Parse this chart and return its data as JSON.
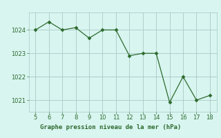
{
  "x": [
    5,
    6,
    7,
    8,
    9,
    10,
    11,
    12,
    13,
    14,
    15,
    16,
    17,
    18
  ],
  "y": [
    1024.0,
    1024.35,
    1024.0,
    1024.1,
    1023.65,
    1024.0,
    1024.0,
    1022.9,
    1023.0,
    1023.0,
    1020.9,
    1022.0,
    1021.0,
    1021.2
  ],
  "line_color": "#2d6a2d",
  "marker": "D",
  "marker_size": 2.5,
  "line_width": 0.9,
  "xlim": [
    4.5,
    18.5
  ],
  "ylim": [
    1020.5,
    1024.75
  ],
  "yticks": [
    1021,
    1022,
    1023,
    1024
  ],
  "xticks": [
    5,
    6,
    7,
    8,
    9,
    10,
    11,
    12,
    13,
    14,
    15,
    16,
    17,
    18
  ],
  "xlabel": "Graphe pression niveau de la mer (hPa)",
  "plot_bg_color": "#d8f5f0",
  "fig_bg_color": "#d8f5f0",
  "label_bg_color": "#c8e8c8",
  "grid_color": "#aac8c4",
  "tick_color": "#2d6a2d",
  "label_text_color": "#2d6a2d",
  "tick_fontsize": 6,
  "label_fontsize": 6.5,
  "figsize": [
    3.2,
    2.0
  ],
  "dpi": 100
}
